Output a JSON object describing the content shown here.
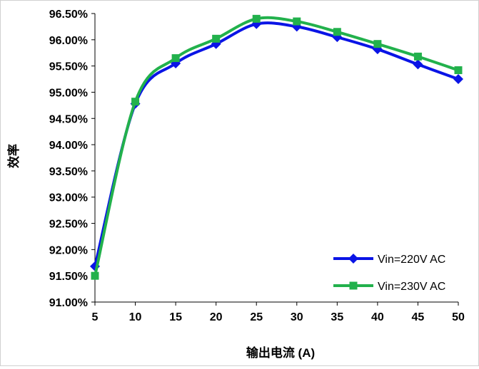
{
  "chart_data": {
    "type": "line",
    "title": "",
    "xlabel": "输出电流 (A)",
    "ylabel": "效率",
    "x": [
      5,
      10,
      15,
      20,
      25,
      30,
      35,
      40,
      45,
      50
    ],
    "xticks": [
      "5",
      "10",
      "15",
      "20",
      "25",
      "30",
      "35",
      "40",
      "45",
      "50"
    ],
    "ylim": [
      91.0,
      96.5
    ],
    "yticks": [
      "96.50%",
      "96.00%",
      "95.50%",
      "95.00%",
      "94.50%",
      "94.00%",
      "93.50%",
      "93.00%",
      "92.50%",
      "92.00%",
      "91.50%",
      "91.00%"
    ],
    "grid": false,
    "legend": "bottom-right",
    "series": [
      {
        "name": "Vin=220V AC",
        "color": "#0a14e6",
        "marker": "diamond",
        "values": [
          91.68,
          94.78,
          95.55,
          95.92,
          96.3,
          96.25,
          96.05,
          95.82,
          95.53,
          95.25
        ]
      },
      {
        "name": "Vin=230V AC",
        "color": "#22b14c",
        "marker": "square",
        "values": [
          91.5,
          94.82,
          95.65,
          96.02,
          96.4,
          96.35,
          96.15,
          95.92,
          95.68,
          95.42
        ]
      }
    ]
  }
}
